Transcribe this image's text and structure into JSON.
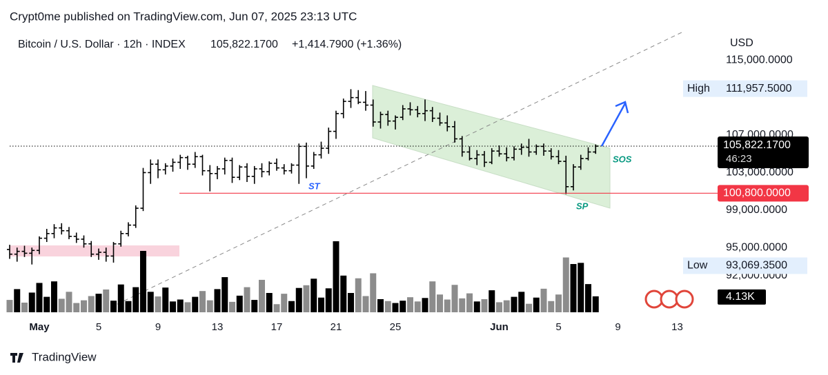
{
  "header": {
    "byline": "Crypt0me published on TradingView.com, Jun 07, 2025 23:13 UTC",
    "brand": "TradingView"
  },
  "chart_data": {
    "type": "ohlc",
    "symbol": "Bitcoin / U.S. Dollar · 12h · INDEX",
    "change": "+1,414.7900 (+1.36%)",
    "currency": "USD",
    "annotations": [
      "ST",
      "SP",
      "SOS"
    ],
    "ohlc": [
      [
        94800,
        95300,
        93800,
        94300
      ],
      [
        94300,
        95000,
        93500,
        94600
      ],
      [
        94600,
        95200,
        94000,
        94400
      ],
      [
        94400,
        95000,
        93200,
        94700
      ],
      [
        94700,
        96200,
        94300,
        96000
      ],
      [
        96000,
        97000,
        95600,
        96500
      ],
      [
        96500,
        97500,
        96000,
        97100
      ],
      [
        97100,
        97600,
        96400,
        96800
      ],
      [
        96800,
        97200,
        95900,
        96200
      ],
      [
        96200,
        96600,
        95500,
        95900
      ],
      [
        95900,
        96300,
        95000,
        95400
      ],
      [
        95400,
        95700,
        94000,
        94300
      ],
      [
        94300,
        94900,
        93700,
        94500
      ],
      [
        94500,
        95000,
        93500,
        94100
      ],
      [
        94100,
        95600,
        93400,
        95400
      ],
      [
        95400,
        96800,
        95100,
        96500
      ],
      [
        96500,
        97700,
        96200,
        97400
      ],
      [
        97400,
        99500,
        97100,
        99200
      ],
      [
        99200,
        103500,
        98900,
        103000
      ],
      [
        103000,
        104400,
        101800,
        103900
      ],
      [
        103900,
        104400,
        102400,
        103300
      ],
      [
        103300,
        104000,
        102800,
        103700
      ],
      [
        103700,
        104500,
        103100,
        104100
      ],
      [
        104100,
        104900,
        103400,
        104600
      ],
      [
        104600,
        104800,
        103300,
        103900
      ],
      [
        103900,
        105200,
        103500,
        104700
      ],
      [
        104700,
        104900,
        102700,
        103200
      ],
      [
        103200,
        103800,
        101000,
        102900
      ],
      [
        102900,
        103700,
        102300,
        103400
      ],
      [
        103400,
        104600,
        102800,
        104300
      ],
      [
        104300,
        104600,
        101900,
        102500
      ],
      [
        102500,
        103800,
        102200,
        103600
      ],
      [
        103600,
        104000,
        102000,
        102600
      ],
      [
        102600,
        103700,
        101800,
        103400
      ],
      [
        103400,
        104000,
        102500,
        103100
      ],
      [
        103100,
        104200,
        102700,
        104000
      ],
      [
        104000,
        104500,
        103200,
        103500
      ],
      [
        103500,
        103900,
        102800,
        103200
      ],
      [
        103200,
        104000,
        102900,
        103800
      ],
      [
        103800,
        106100,
        101800,
        105800
      ],
      [
        105800,
        106200,
        102400,
        103700
      ],
      [
        103700,
        105200,
        103400,
        104900
      ],
      [
        104900,
        106300,
        104500,
        105600
      ],
      [
        105600,
        107800,
        105000,
        107400
      ],
      [
        107400,
        109600,
        106600,
        109300
      ],
      [
        109300,
        110900,
        108800,
        110600
      ],
      [
        110600,
        111900,
        109900,
        111000
      ],
      [
        111000,
        111800,
        110300,
        110500
      ],
      [
        110500,
        111700,
        109600,
        110200
      ],
      [
        110200,
        110800,
        107900,
        108400
      ],
      [
        108400,
        109500,
        107700,
        109200
      ],
      [
        109200,
        109600,
        108000,
        108500
      ],
      [
        108500,
        109100,
        107600,
        108900
      ],
      [
        108900,
        110200,
        108600,
        109800
      ],
      [
        109800,
        110500,
        109100,
        109700
      ],
      [
        109700,
        110100,
        108900,
        109300
      ],
      [
        109300,
        110800,
        108500,
        109600
      ],
      [
        109600,
        110000,
        108400,
        108800
      ],
      [
        108800,
        109400,
        108000,
        108300
      ],
      [
        108300,
        109100,
        107400,
        107900
      ],
      [
        107900,
        108500,
        106200,
        106600
      ],
      [
        106600,
        106900,
        104700,
        105200
      ],
      [
        105200,
        105800,
        104300,
        104500
      ],
      [
        104500,
        105400,
        103800,
        104900
      ],
      [
        104900,
        105300,
        103600,
        104100
      ],
      [
        104100,
        105600,
        103900,
        105300
      ],
      [
        105300,
        105900,
        104700,
        105000
      ],
      [
        105000,
        105700,
        104200,
        104600
      ],
      [
        104600,
        105800,
        104300,
        105500
      ],
      [
        105500,
        106100,
        104900,
        105700
      ],
      [
        105700,
        106600,
        104700,
        105200
      ],
      [
        105200,
        106000,
        104900,
        105800
      ],
      [
        105800,
        106100,
        104800,
        105300
      ],
      [
        105300,
        105600,
        104400,
        104700
      ],
      [
        104700,
        105400,
        103900,
        104200
      ],
      [
        104200,
        104800,
        100700,
        101500
      ],
      [
        101500,
        103900,
        101100,
        103600
      ],
      [
        103600,
        104900,
        103300,
        104500
      ],
      [
        104500,
        105700,
        104300,
        105200
      ],
      [
        105200,
        106000,
        105000,
        105822.17
      ]
    ],
    "volume": [
      3.2,
      6.0,
      2.5,
      5.1,
      7.6,
      4.0,
      8.0,
      3.5,
      5.3,
      2.4,
      3.1,
      4.2,
      4.8,
      5.9,
      3.0,
      7.2,
      2.9,
      6.5,
      15.9,
      5.3,
      4.1,
      6.4,
      2.8,
      3.3,
      2.6,
      4.0,
      5.5,
      3.1,
      6.0,
      9.1,
      2.7,
      4.3,
      6.5,
      3.2,
      8.4,
      5.0,
      2.1,
      4.8,
      2.9,
      6.3,
      7.0,
      8.7,
      3.8,
      6.2,
      18.4,
      9.5,
      5.0,
      8.8,
      4.2,
      10.1,
      3.4,
      2.9,
      2.4,
      3.0,
      3.9,
      2.8,
      3.7,
      8.0,
      4.6,
      3.3,
      7.1,
      3.6,
      4.9,
      2.8,
      3.4,
      5.7,
      2.6,
      3.1,
      4.0,
      5.3,
      2.2,
      3.8,
      6.1,
      2.9,
      4.6,
      14.2,
      12.5,
      12.8,
      7.3,
      4.13
    ],
    "volume_label": "4.13K",
    "last_price": {
      "value": 105822.17,
      "label": "105,822.1700"
    },
    "countdown": "46:23",
    "high": {
      "name": "High",
      "value": 111957.5,
      "label": "111,957.5000"
    },
    "low": {
      "name": "Low",
      "value": 93069.35,
      "label": "93,069.3500"
    },
    "level": {
      "value": 100800,
      "label": "100,800.0000",
      "color": "#f23645"
    },
    "yticks": [
      {
        "value": 115000,
        "label": "115,000.0000"
      },
      {
        "value": 107000,
        "label": "107,000.0000"
      },
      {
        "value": 103000,
        "label": "103,000.0000"
      },
      {
        "value": 99000,
        "label": "99,000.0000"
      },
      {
        "value": 95000,
        "label": "95,000.0000"
      },
      {
        "value": 92000,
        "label": "92,000.0000"
      }
    ],
    "xticks": [
      {
        "value": 4,
        "label": "May"
      },
      {
        "value": 12,
        "label": "5"
      },
      {
        "value": 20,
        "label": "9"
      },
      {
        "value": 28,
        "label": "13"
      },
      {
        "value": 36,
        "label": "17"
      },
      {
        "value": 44,
        "label": "21"
      },
      {
        "value": 52,
        "label": "25"
      },
      {
        "value": 66,
        "label": "Jun"
      },
      {
        "value": 74,
        "label": "5"
      },
      {
        "value": 82,
        "label": "9"
      },
      {
        "value": 90,
        "label": "13"
      }
    ],
    "up_color": "#000000",
    "down_color": "#8c8c8c"
  }
}
